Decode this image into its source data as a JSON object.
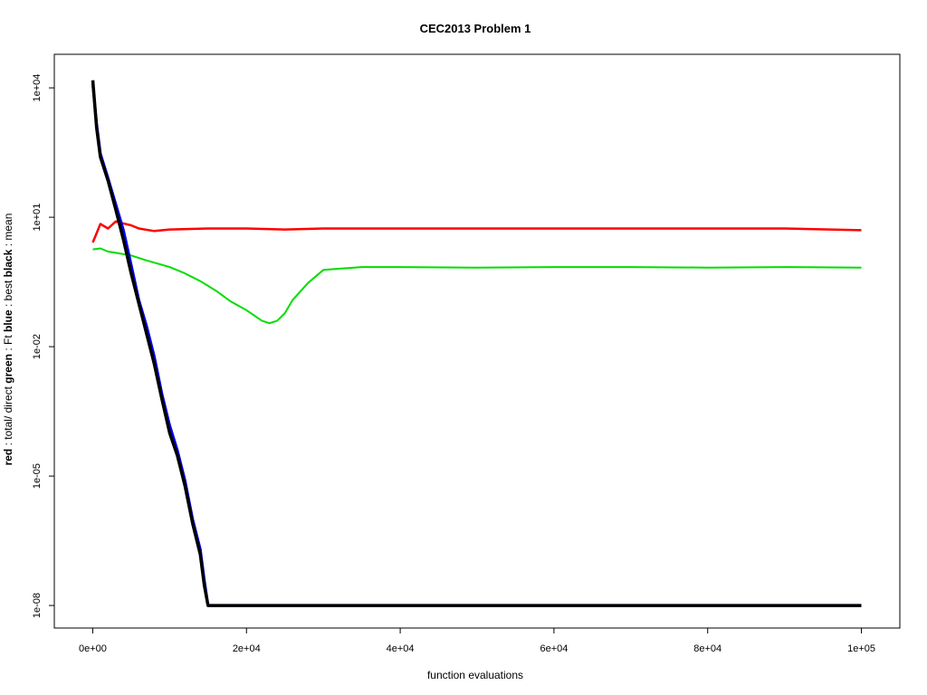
{
  "chart_data": {
    "type": "line",
    "title": "CEC2013 Problem  1",
    "xlabel": "function evaluations",
    "ylabel_parts": [
      {
        "text": "red",
        "bold": true
      },
      {
        "text": " : total/ direct ",
        "bold": false
      },
      {
        "text": "green",
        "bold": true
      },
      {
        "text": " : Ft ",
        "bold": false
      },
      {
        "text": "blue",
        "bold": true
      },
      {
        "text": " : best ",
        "bold": false
      },
      {
        "text": "black",
        "bold": true
      },
      {
        "text": " : mean",
        "bold": false
      }
    ],
    "xlim": [
      -5000,
      105000
    ],
    "ylim": [
      3e-09,
      60000
    ],
    "yscale": "log",
    "x_ticks": [
      {
        "value": 0,
        "label": "0e+00"
      },
      {
        "value": 20000,
        "label": "2e+04"
      },
      {
        "value": 40000,
        "label": "4e+04"
      },
      {
        "value": 60000,
        "label": "6e+04"
      },
      {
        "value": 80000,
        "label": "8e+04"
      },
      {
        "value": 100000,
        "label": "1e+05"
      }
    ],
    "y_ticks": [
      {
        "value": 10000,
        "label": "1e+04"
      },
      {
        "value": 10,
        "label": "1e+01"
      },
      {
        "value": 0.01,
        "label": "1e-02"
      },
      {
        "value": 1e-05,
        "label": "1e-05"
      },
      {
        "value": 1e-08,
        "label": "1e-08"
      }
    ],
    "grid": false,
    "series": [
      {
        "color": "#ff0000",
        "x": [
          0,
          1000,
          2000,
          3000,
          4000,
          5000,
          6000,
          8000,
          10000,
          15000,
          20000,
          25000,
          30000,
          40000,
          50000,
          60000,
          66000,
          70000,
          80000,
          90000,
          100000
        ],
        "y": [
          2.6,
          7,
          5.5,
          8,
          7.2,
          6.5,
          5.5,
          4.8,
          5.2,
          5.5,
          5.5,
          5.2,
          5.5,
          5.5,
          5.5,
          5.5,
          5.5,
          5.5,
          5.5,
          5.5,
          5
        ]
      },
      {
        "color": "#00dd00",
        "x": [
          0,
          1000,
          2000,
          3000,
          5000,
          7000,
          10000,
          12000,
          14000,
          16000,
          18000,
          20000,
          22000,
          23000,
          24000,
          25000,
          26000,
          28000,
          30000,
          35000,
          40000,
          50000,
          60000,
          70000,
          80000,
          90000,
          100000
        ],
        "y": [
          1.8,
          1.9,
          1.6,
          1.5,
          1.3,
          1.0,
          0.7,
          0.5,
          0.33,
          0.2,
          0.11,
          0.07,
          0.04,
          0.035,
          0.04,
          0.06,
          0.12,
          0.3,
          0.6,
          0.7,
          0.7,
          0.68,
          0.7,
          0.7,
          0.68,
          0.7,
          0.68
        ]
      },
      {
        "color": "#0000ff",
        "x": [
          0,
          500,
          1000,
          2000,
          3000,
          4000,
          5000,
          6000,
          7000,
          8000,
          9000,
          10000,
          11000,
          12000,
          13000,
          14000,
          14500,
          15000,
          16000,
          20000,
          40000,
          60000,
          80000,
          100000
        ],
        "y": [
          12000,
          1500,
          300,
          80,
          20,
          5,
          0.8,
          0.12,
          0.03,
          0.006,
          0.0008,
          0.00015,
          4e-05,
          8e-06,
          1e-06,
          2e-07,
          4e-08,
          1e-08,
          1e-08,
          1e-08,
          1e-08,
          1e-08,
          1e-08,
          1e-08
        ]
      },
      {
        "color": "#000000",
        "x": [
          0,
          500,
          1000,
          2000,
          3000,
          4000,
          5000,
          6000,
          7000,
          8000,
          9000,
          10000,
          11000,
          12000,
          13000,
          14000,
          14500,
          15000,
          16000,
          20000,
          40000,
          60000,
          80000,
          100000
        ],
        "y": [
          15000,
          1200,
          250,
          70,
          15,
          3,
          0.5,
          0.1,
          0.02,
          0.004,
          0.0006,
          0.0001,
          3e-05,
          6e-06,
          8e-07,
          1.5e-07,
          3e-08,
          1e-08,
          1e-08,
          1e-08,
          1e-08,
          1e-08,
          1e-08,
          1e-08
        ]
      }
    ]
  }
}
